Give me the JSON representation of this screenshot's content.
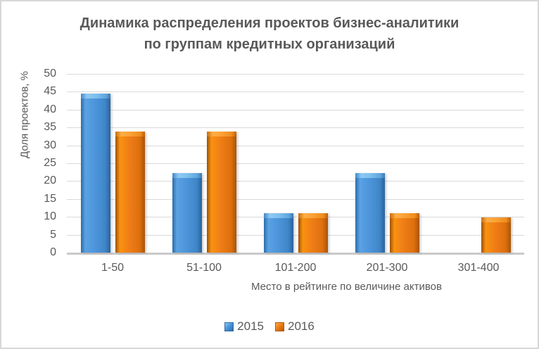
{
  "chart_data": {
    "type": "bar",
    "title_line1": "Динамика распределения проектов бизнес-аналитики",
    "title_line2": "по группам кредитных организаций",
    "ylabel": "Доля проектов, %",
    "xlabel": "Место в рейтинге по величине активов",
    "categories": [
      "1-50",
      "51-100",
      "101-200",
      "201-300",
      "301-400"
    ],
    "series": [
      {
        "name": "2015",
        "color": "#4e96dc",
        "values": [
          44.4,
          22.2,
          11.1,
          22.2,
          0
        ]
      },
      {
        "name": "2016",
        "color": "#f07e17",
        "values": [
          33.9,
          33.9,
          11.1,
          11.1,
          9.9
        ]
      }
    ],
    "ylim": [
      0,
      50
    ],
    "yticks": [
      0,
      5,
      10,
      15,
      20,
      25,
      30,
      35,
      40,
      45,
      50
    ],
    "grid": true,
    "legend_position": "bottom",
    "colors": {
      "text": "#595959",
      "gridline": "#d9d9d9",
      "axis_line": "#c9c9c9",
      "frame_border": "#d8d8d8",
      "series_2015": "#4e96dc",
      "series_2016": "#f07e17"
    }
  }
}
